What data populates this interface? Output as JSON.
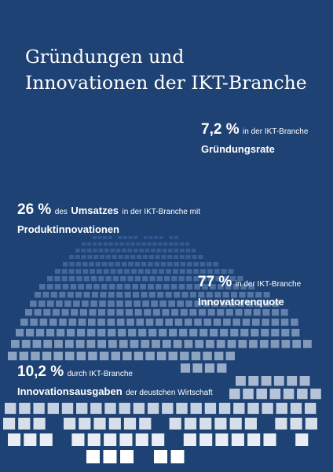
{
  "title": {
    "line1": "Gründungen und",
    "line2": "Innovationen der IKT-Branche"
  },
  "stats": {
    "gruendungsrate": {
      "value": "7,2 %",
      "qualifier": "in der IKT-Branche",
      "label": "Gründungsrate"
    },
    "produktinnovationen": {
      "value": "26 %",
      "qualifier1": "des",
      "emph": "Umsatzes",
      "qualifier2": "in der IKT-Branche mit",
      "label": "Produktinnovationen"
    },
    "innovatorenquote": {
      "value": "77 %",
      "qualifier": "in der IKT-Branche",
      "label": "Innovatorenquote"
    },
    "innovationsausgaben": {
      "value": "10,2 %",
      "qualifier": "durch IKT-Branche",
      "label": "Innovationsausgaben",
      "suffix": "der deustchen Wirtschaft"
    }
  },
  "colors": {
    "background": "#1e4273",
    "tile_top": "#2f5890",
    "tile_bottom": "#ffffff",
    "text": "#ffffff"
  }
}
